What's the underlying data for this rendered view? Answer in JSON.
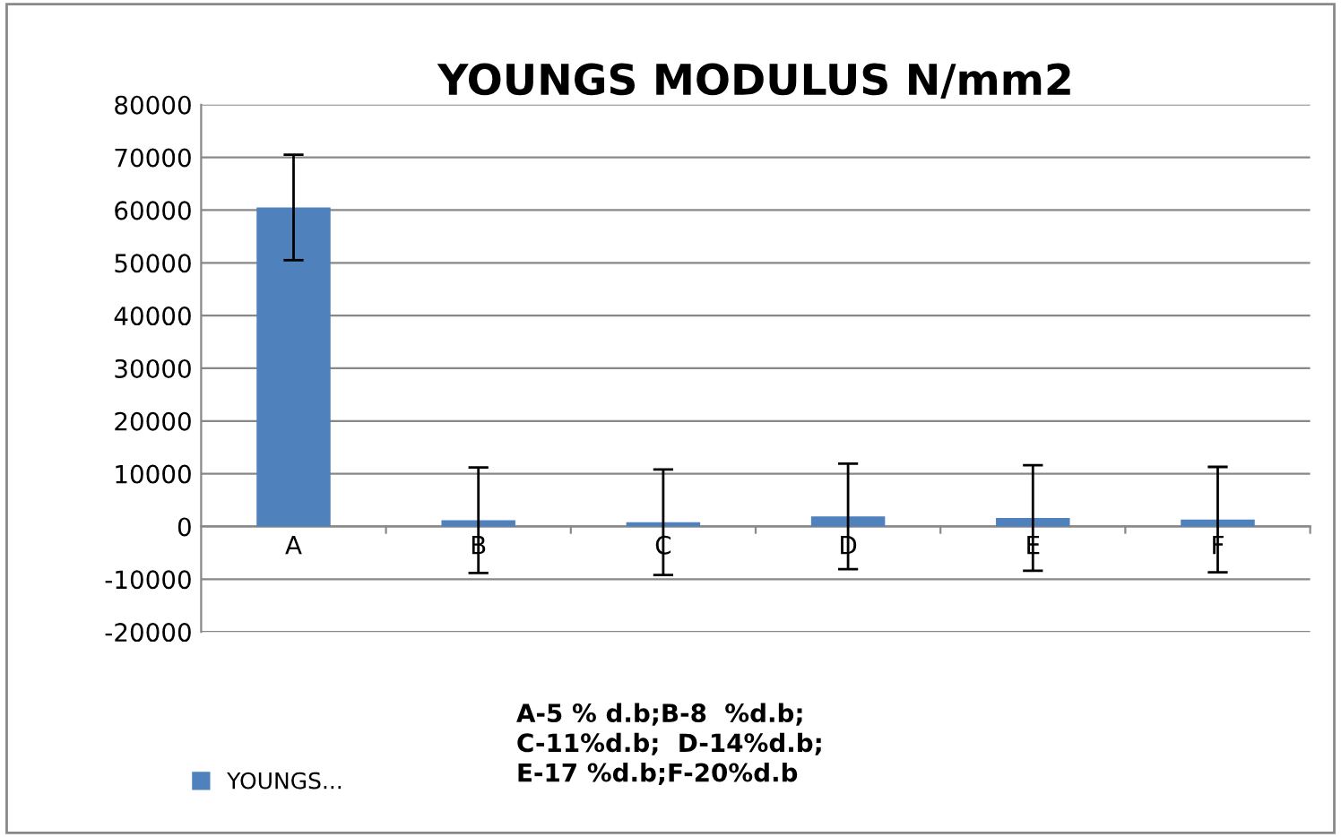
{
  "chart_data": {
    "type": "bar",
    "title": "YOUNGS MODULUS N/mm2",
    "categories": [
      "A",
      "B",
      "C",
      "D",
      "E",
      "F"
    ],
    "series": [
      {
        "name": "YOUNGS...",
        "color": "#4f81bd",
        "values": [
          60500,
          1200,
          800,
          1900,
          1600,
          1300
        ],
        "errors": [
          10000,
          10000,
          10000,
          10000,
          10000,
          10000
        ]
      }
    ],
    "ylim": [
      -20000,
      80000
    ],
    "yticks": [
      -20000,
      -10000,
      0,
      10000,
      20000,
      30000,
      40000,
      50000,
      60000,
      70000,
      80000
    ],
    "grid": "y",
    "legend": "bottom",
    "annotations": [
      "A-5 % d.b;B-8  %d.b;\nC-11%d.b;  D-14%d.b;\nE-17 %d.b;F-20%d.b"
    ]
  }
}
